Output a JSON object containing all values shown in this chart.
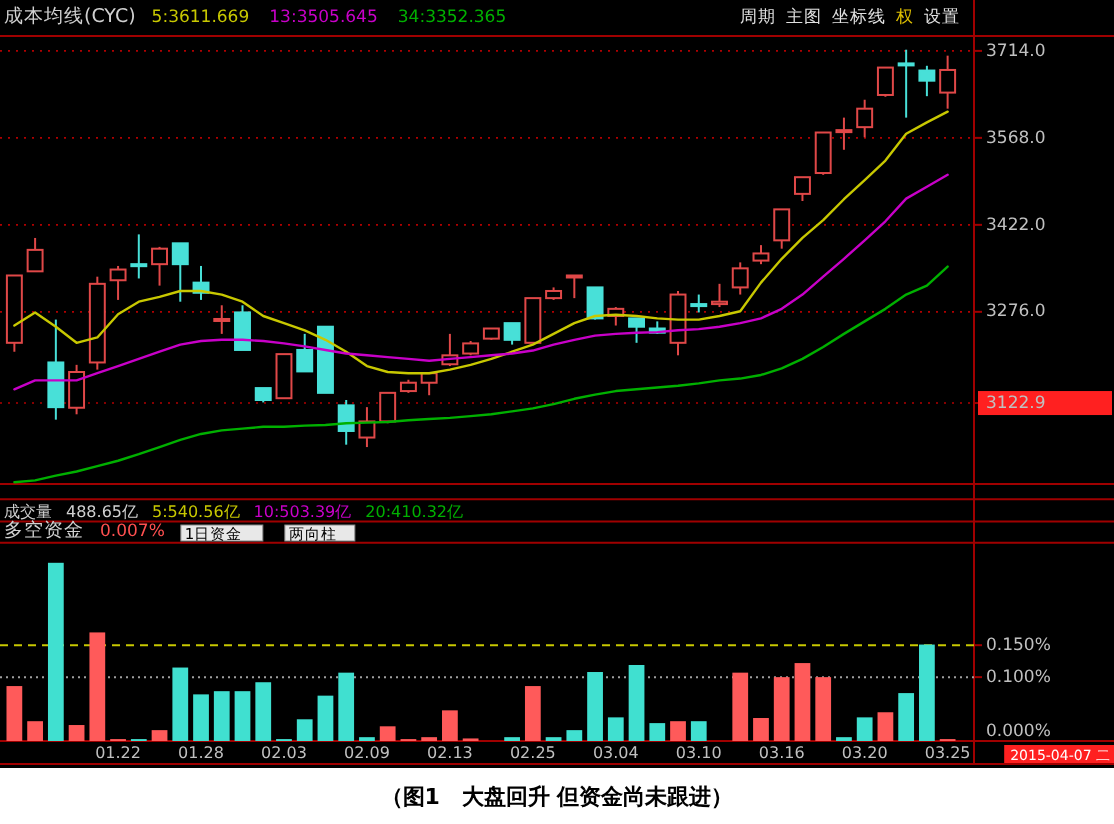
{
  "chart_data": [
    {
      "type": "candlestick",
      "title": "成本均线(CYC)",
      "legend": "top left",
      "grid": "y",
      "tick_labels": "y",
      "categories": [
        null,
        null,
        null,
        null,
        null,
        null,
        null,
        null,
        null,
        null,
        null,
        null,
        null,
        null,
        null,
        null,
        null,
        null,
        null,
        null,
        null,
        null,
        null,
        null,
        null,
        null,
        null,
        null,
        null,
        null,
        null,
        null,
        null,
        null,
        null,
        null,
        null,
        null,
        null,
        null,
        null,
        null,
        null,
        null,
        null,
        null
      ],
      "ohlc": [
        [
          3224,
          3337,
          3209,
          3337
        ],
        [
          3344,
          3400,
          3344,
          3380
        ],
        [
          3191,
          3263,
          3095,
          3116
        ],
        [
          3115,
          3187,
          3104,
          3175
        ],
        [
          3191,
          3335,
          3179,
          3323
        ],
        [
          3329,
          3353,
          3296,
          3347
        ],
        [
          3356,
          3406,
          3332,
          3355
        ],
        [
          3356,
          3385,
          3320,
          3382
        ],
        [
          3391,
          3391,
          3293,
          3356
        ],
        [
          3325,
          3353,
          3296,
          3308
        ],
        [
          3261,
          3287,
          3239,
          3264
        ],
        [
          3275,
          3287,
          3212,
          3212
        ],
        [
          3148,
          3148,
          3124,
          3128
        ],
        [
          3131,
          3205,
          3131,
          3205
        ],
        [
          3212,
          3239,
          3176,
          3176
        ],
        [
          3251,
          3251,
          3140,
          3140
        ],
        [
          3119,
          3128,
          3053,
          3076
        ],
        [
          3065,
          3116,
          3049,
          3092
        ],
        [
          3092,
          3140,
          3089,
          3140
        ],
        [
          3143,
          3162,
          3140,
          3157
        ],
        [
          3157,
          3175,
          3136,
          3173
        ],
        [
          3188,
          3239,
          3185,
          3203
        ],
        [
          3206,
          3227,
          3203,
          3223
        ],
        [
          3231,
          3248,
          3229,
          3248
        ],
        [
          3257,
          3257,
          3221,
          3229
        ],
        [
          3224,
          3299,
          3224,
          3299
        ],
        [
          3299,
          3317,
          3296,
          3311
        ],
        [
          3336,
          3337,
          3299,
          3337
        ],
        [
          3317,
          3317,
          3263,
          3265
        ],
        [
          3269,
          3284,
          3253,
          3281
        ],
        [
          3265,
          3265,
          3224,
          3251
        ],
        [
          3248,
          3260,
          3239,
          3241
        ],
        [
          3224,
          3311,
          3203,
          3305
        ],
        [
          3289,
          3305,
          3275,
          3288
        ],
        [
          3289,
          3323,
          3284,
          3293
        ],
        [
          3317,
          3359,
          3305,
          3349
        ],
        [
          3362,
          3388,
          3356,
          3374
        ],
        [
          3396,
          3448,
          3382,
          3448
        ],
        [
          3474,
          3502,
          3462,
          3502
        ],
        [
          3509,
          3577,
          3506,
          3577
        ],
        [
          3578,
          3602,
          3548,
          3581
        ],
        [
          3586,
          3632,
          3569,
          3617
        ],
        [
          3640,
          3686,
          3637,
          3686
        ],
        [
          3693,
          3716,
          3602,
          3691
        ],
        [
          3681,
          3689,
          3638,
          3664
        ],
        [
          3644,
          3706,
          3617,
          3682
        ]
      ],
      "colors": [
        "#e04848",
        "#e04848",
        "#48e0d8",
        "#e04848",
        "#e04848",
        "#e04848",
        "#48e0d8",
        "#e04848",
        "#48e0d8",
        "#48e0d8",
        "#e04848",
        "#48e0d8",
        "#48e0d8",
        "#e04848",
        "#48e0d8",
        "#48e0d8",
        "#48e0d8",
        "#e04848",
        "#e04848",
        "#e04848",
        "#e04848",
        "#e04848",
        "#e04848",
        "#e04848",
        "#48e0d8",
        "#e04848",
        "#e04848",
        "#e04848",
        "#48e0d8",
        "#e04848",
        "#48e0d8",
        "#48e0d8",
        "#e04848",
        "#48e0d8",
        "#e04848",
        "#e04848",
        "#e04848",
        "#e04848",
        "#e04848",
        "#e04848",
        "#e04848",
        "#e04848",
        "#e04848",
        "#48e0d8",
        "#48e0d8",
        "#e04848"
      ],
      "series": [
        {
          "type": "line",
          "name": "5:3611.669",
          "color": "#c8c800",
          "values": [
            3253,
            3275,
            3251,
            3224,
            3233,
            3272,
            3293,
            3301,
            3311,
            3311,
            3305,
            3293,
            3269,
            3257,
            3245,
            3229,
            3209,
            3185,
            3175,
            3173,
            3173,
            3179,
            3187,
            3197,
            3209,
            3221,
            3239,
            3257,
            3269,
            3271,
            3269,
            3265,
            3263,
            3263,
            3269,
            3277,
            3325,
            3365,
            3400,
            3430,
            3465,
            3497,
            3530,
            3575,
            3594,
            3612
          ]
        },
        {
          "type": "line",
          "name": "13:3505.645",
          "color": "#c800c8",
          "values": [
            3146,
            3161,
            3161,
            3161,
            3173,
            3185,
            3197,
            3209,
            3221,
            3227,
            3229,
            3229,
            3227,
            3223,
            3218,
            3212,
            3206,
            3203,
            3200,
            3197,
            3194,
            3197,
            3200,
            3203,
            3206,
            3211,
            3221,
            3229,
            3236,
            3239,
            3241,
            3242,
            3245,
            3247,
            3251,
            3257,
            3265,
            3281,
            3305,
            3335,
            3365,
            3396,
            3428,
            3466,
            3486,
            3506
          ]
        },
        {
          "type": "line",
          "name": "34:3352.365",
          "color": "#00b000",
          "values": [
            2990,
            2993,
            3001,
            3008,
            3017,
            3026,
            3037,
            3049,
            3061,
            3071,
            3077,
            3080,
            3083,
            3083,
            3085,
            3086,
            3089,
            3090,
            3091,
            3094,
            3096,
            3098,
            3101,
            3104,
            3109,
            3114,
            3121,
            3130,
            3137,
            3143,
            3146,
            3149,
            3152,
            3156,
            3161,
            3164,
            3170,
            3181,
            3197,
            3217,
            3239,
            3260,
            3281,
            3305,
            3320,
            3352
          ]
        }
      ],
      "ylim": [
        2987,
        3739
      ],
      "yticks": [
        {
          "value": 3122.9,
          "label": "3122.9"
        },
        {
          "value": 3276,
          "label": "3276.0"
        },
        {
          "value": 3422,
          "label": "3422.0"
        },
        {
          "value": 3568,
          "label": "3568.0"
        },
        {
          "value": 3714,
          "label": "3714.0"
        }
      ],
      "annotations": [
        "周期",
        "主图",
        "坐标线",
        "权",
        "设置"
      ]
    },
    {
      "type": "bar",
      "title": "多空资金",
      "subtitle": "0.007%",
      "categories": [
        null,
        null,
        null,
        null,
        null,
        "01.22",
        null,
        null,
        null,
        "01.28",
        null,
        null,
        null,
        "02.03",
        null,
        null,
        null,
        "02.09",
        null,
        null,
        null,
        "02.13",
        null,
        null,
        null,
        "02.25",
        null,
        null,
        null,
        "03.04",
        null,
        null,
        null,
        "03.10",
        null,
        null,
        null,
        "03.16",
        null,
        null,
        null,
        "03.20",
        null,
        null,
        null,
        "03.25"
      ],
      "values": [
        0.086,
        0.031,
        0.279,
        0.025,
        0.17,
        0.003,
        0.003,
        0.017,
        0.115,
        0.073,
        0.078,
        0.078,
        0.092,
        0.003,
        0.034,
        0.071,
        0.107,
        0.006,
        0.023,
        0.003,
        0.006,
        0.048,
        0.004,
        null,
        0.006,
        0.086,
        0.006,
        0.017,
        0.108,
        0.037,
        0.119,
        0.028,
        0.031,
        0.031,
        null,
        0.107,
        0.036,
        0.1,
        0.122,
        0.1,
        0.006,
        0.037,
        0.045,
        0.075,
        0.151,
        0.003
      ],
      "colors": [
        "#ff5a5a",
        "#ff5a5a",
        "#40e0d0",
        "#ff5a5a",
        "#ff5a5a",
        "#ff5a5a",
        "#40e0d0",
        "#ff5a5a",
        "#40e0d0",
        "#40e0d0",
        "#40e0d0",
        "#40e0d0",
        "#40e0d0",
        "#40e0d0",
        "#40e0d0",
        "#40e0d0",
        "#40e0d0",
        "#40e0d0",
        "#ff5a5a",
        "#ff5a5a",
        "#ff5a5a",
        "#ff5a5a",
        "#ff5a5a",
        null,
        "#40e0d0",
        "#ff5a5a",
        "#40e0d0",
        "#40e0d0",
        "#40e0d0",
        "#40e0d0",
        "#40e0d0",
        "#40e0d0",
        "#ff5a5a",
        "#40e0d0",
        null,
        "#ff5a5a",
        "#ff5a5a",
        "#ff5a5a",
        "#ff5a5a",
        "#ff5a5a",
        "#40e0d0",
        "#40e0d0",
        "#ff5a5a",
        "#40e0d0",
        "#40e0d0",
        "#ff5a5a"
      ],
      "ylim": [
        0,
        0.31
      ],
      "yticks": [
        {
          "value": 0,
          "label": "0.000%"
        },
        {
          "value": 0.1,
          "label": "0.100%"
        },
        {
          "value": 0.15,
          "label": "0.150%"
        }
      ],
      "ref_lines": [
        {
          "axis": "y",
          "value": 0.15,
          "color": "#c8c800",
          "line_style": "dashed"
        },
        {
          "axis": "y",
          "value": 0.1,
          "color": "#a0a0a0",
          "line_style": "dotted"
        }
      ],
      "annotations": [
        "1日资金",
        "两向柱",
        "成交量",
        "488.65亿",
        "5:540.56亿",
        "10:503.39亿",
        "20:410.32亿",
        "2015-04-07 二",
        "（图1　大盘回升  但资金尚未跟进）"
      ]
    }
  ]
}
